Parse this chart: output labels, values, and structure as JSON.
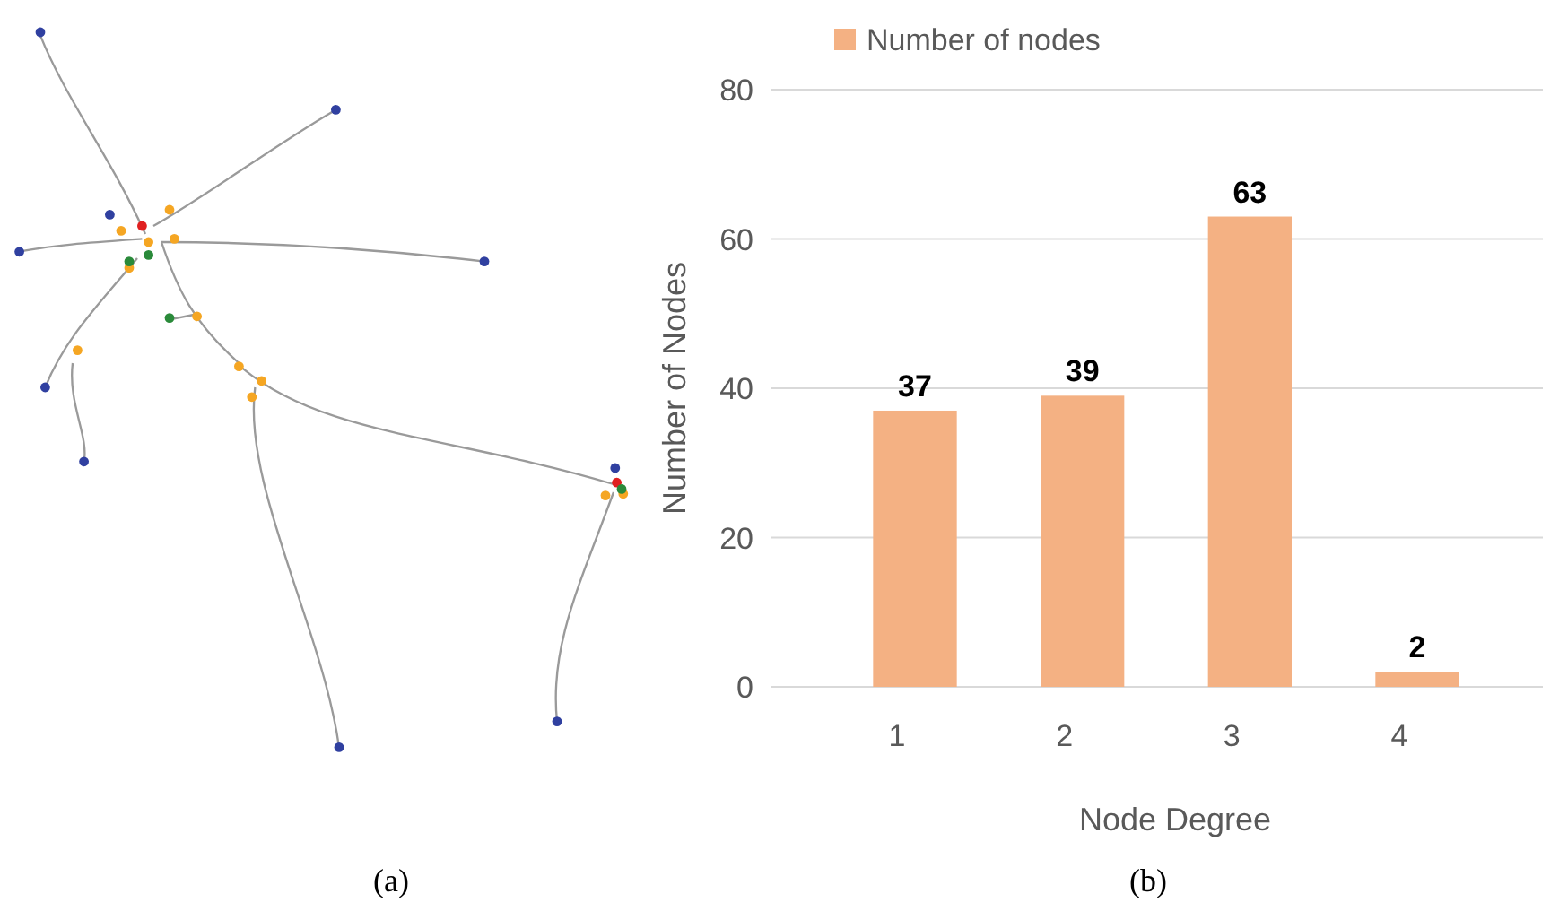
{
  "chart_data": {
    "type": "bar",
    "xlabel": "Node Degree",
    "ylabel": "Number of Nodes",
    "categories": [
      "1",
      "2",
      "3",
      "4"
    ],
    "series": [
      {
        "name": "Number of nodes",
        "color": "#f4b183",
        "values": [
          37,
          39,
          63,
          2
        ]
      }
    ],
    "ylim": [
      0,
      80
    ],
    "yticks": [
      0,
      20,
      40,
      60,
      80
    ],
    "grid": "y",
    "legend": "top",
    "data_labels": true,
    "annotations": [
      "(a)",
      "(b)"
    ]
  }
}
